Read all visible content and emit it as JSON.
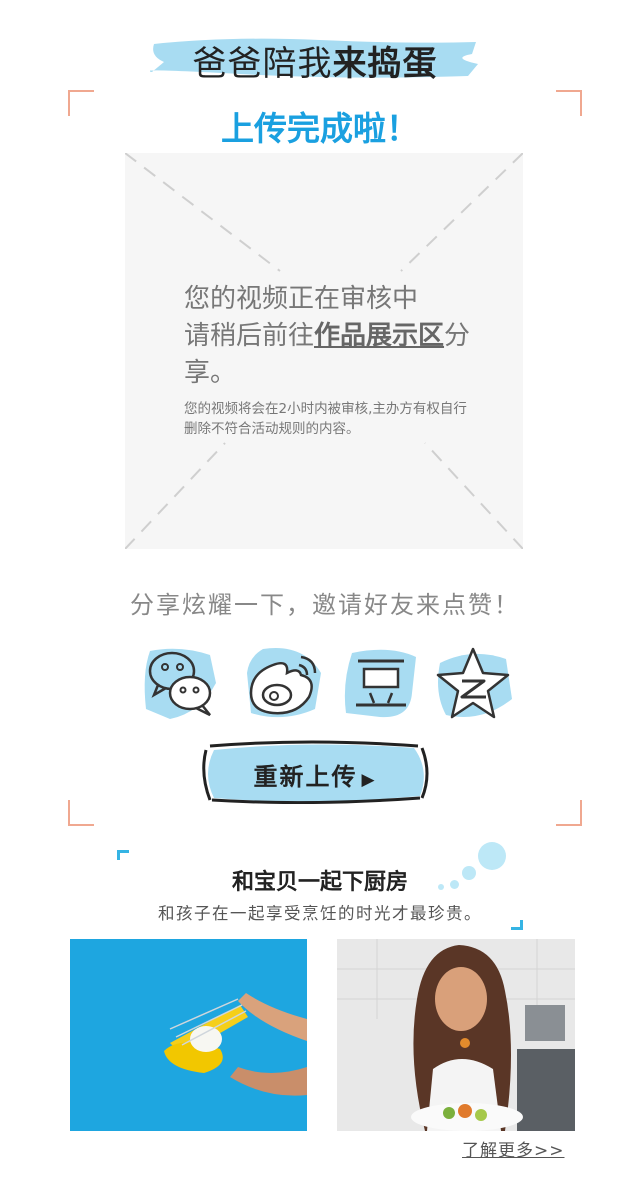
{
  "header": {
    "title_plain": "爸爸陪我",
    "title_bold": "来捣蛋"
  },
  "upload": {
    "status_title": "上传完成啦！",
    "review_line1": "您的视频正在审核中",
    "review_line2": "请稍后前往",
    "review_link": "作品展示区",
    "review_line3": "分享。",
    "review_note": "您的视频将会在2小时内被审核,主办方有权自行删除不符合活动规则的内容。"
  },
  "share": {
    "prompt": "分享炫耀一下，邀请好友来点赞！",
    "icons": [
      "wechat-icon",
      "weibo-icon",
      "douban-icon",
      "qzone-icon"
    ]
  },
  "reupload": {
    "label": "重新上传",
    "arrow": "▶"
  },
  "kitchen": {
    "title": "和宝贝一起下厨房",
    "subtitle": "和孩子在一起享受烹饪的时光才最珍贵。",
    "more_link": "了解更多>>"
  },
  "colors": {
    "accent": "#1aa0e0",
    "brush": "#a8dcf2",
    "corner": "#f0a890",
    "photo_blue": "#1ea6e0"
  }
}
